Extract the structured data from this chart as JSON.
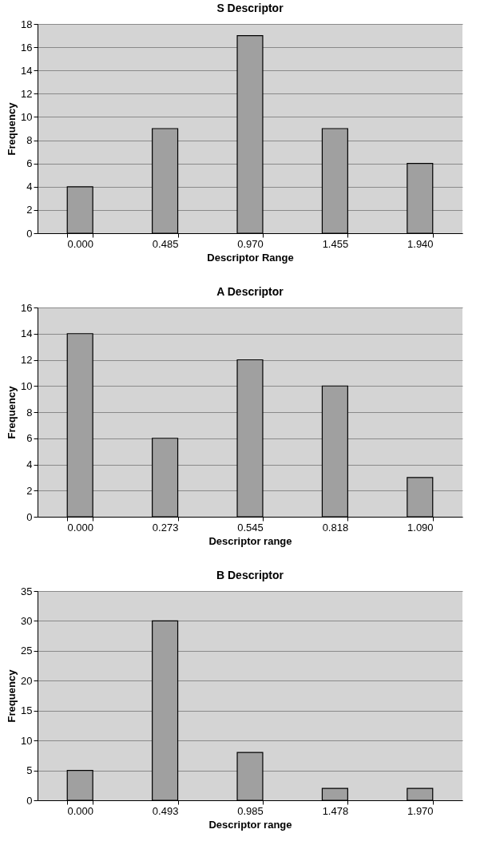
{
  "chart_data": [
    {
      "type": "bar",
      "title": "S Descriptor",
      "xlabel": "Descriptor Range",
      "ylabel": "Frequency",
      "categories": [
        "0.000",
        "0.485",
        "0.970",
        "1.455",
        "1.940"
      ],
      "values": [
        4,
        9,
        17,
        9,
        6
      ],
      "color": "#a0a0a0",
      "ylim": [
        0,
        18
      ],
      "yticks": [
        0,
        2,
        4,
        6,
        8,
        10,
        12,
        14,
        16,
        18
      ],
      "grid": "y"
    },
    {
      "type": "bar",
      "title": "A Descriptor",
      "xlabel": "Descriptor range",
      "ylabel": "Frequency",
      "categories": [
        "0.000",
        "0.273",
        "0.545",
        "0.818",
        "1.090"
      ],
      "values": [
        14,
        6,
        12,
        10,
        3
      ],
      "color": "#a0a0a0",
      "ylim": [
        0,
        16
      ],
      "yticks": [
        0,
        2,
        4,
        6,
        8,
        10,
        12,
        14,
        16
      ],
      "grid": "y"
    },
    {
      "type": "bar",
      "title": "B Descriptor",
      "xlabel": "Descriptor range",
      "ylabel": "Frequency",
      "categories": [
        "0.000",
        "0.493",
        "0.985",
        "1.478",
        "1.970"
      ],
      "values": [
        5,
        30,
        8,
        2,
        2
      ],
      "color": "#a0a0a0",
      "ylim": [
        0,
        35
      ],
      "yticks": [
        0,
        5,
        10,
        15,
        20,
        25,
        30,
        35
      ],
      "grid": "y"
    }
  ]
}
